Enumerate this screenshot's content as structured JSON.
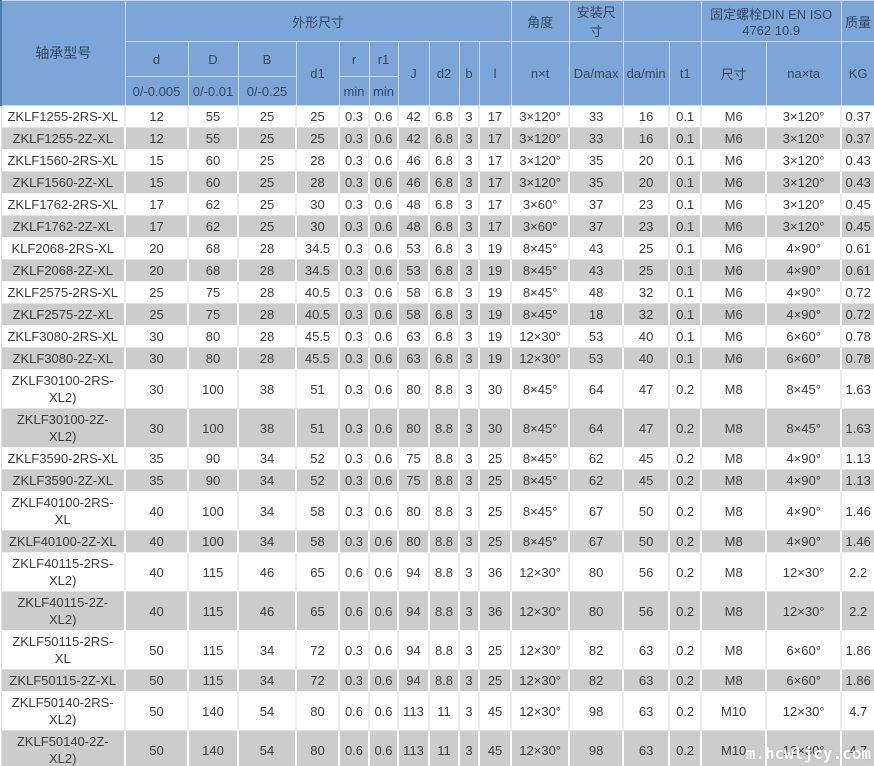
{
  "table": {
    "title_col": "轴承型号",
    "groups": {
      "dimensions": "外形尺寸",
      "angle": "角度",
      "mounting": "安装尺寸",
      "bolt": "固定螺栓DIN EN ISO 4762  10.9",
      "mass": "质量"
    },
    "columns": [
      "d",
      "D",
      "B",
      "d1",
      "r",
      "r1",
      "J",
      "d2",
      "b",
      "l",
      "n×t",
      "Da/max",
      "da/min",
      "t1",
      "尺寸",
      "na×ta",
      "KG"
    ],
    "tolerances": [
      "0/-0.005",
      "0/-0.01",
      "0/-0.25",
      "min",
      "min"
    ],
    "rows": [
      [
        "ZKLF1255-2RS-XL",
        "12",
        "55",
        "25",
        "25",
        "0.3",
        "0.6",
        "42",
        "6.8",
        "3",
        "17",
        "3×120°",
        "33",
        "16",
        "0.1",
        "M6",
        "3×120°",
        "0.37"
      ],
      [
        "ZKLF1255-2Z-XL",
        "12",
        "55",
        "25",
        "25",
        "0.3",
        "0.6",
        "42",
        "6.8",
        "3",
        "17",
        "3×120°",
        "33",
        "16",
        "0.1",
        "M6",
        "3×120°",
        "0.37"
      ],
      [
        "ZKLF1560-2RS-XL",
        "15",
        "60",
        "25",
        "28",
        "0.3",
        "0.6",
        "46",
        "6.8",
        "3",
        "17",
        "3×120°",
        "35",
        "20",
        "0.1",
        "M6",
        "3×120°",
        "0.43"
      ],
      [
        "ZKLF1560-2Z-XL",
        "15",
        "60",
        "25",
        "28",
        "0.3",
        "0.6",
        "46",
        "6.8",
        "3",
        "17",
        "3×120°",
        "35",
        "20",
        "0.1",
        "M6",
        "3×120°",
        "0.43"
      ],
      [
        "ZKLF1762-2RS-XL",
        "17",
        "62",
        "25",
        "30",
        "0.3",
        "0.6",
        "48",
        "6.8",
        "3",
        "17",
        "3×60°",
        "37",
        "23",
        "0.1",
        "M6",
        "3×120°",
        "0.45"
      ],
      [
        "ZKLF1762-2Z-XL",
        "17",
        "62",
        "25",
        "30",
        "0.3",
        "0.6",
        "48",
        "6.8",
        "3",
        "17",
        "3×60°",
        "37",
        "23",
        "0.1",
        "M6",
        "3×120°",
        "0.45"
      ],
      [
        "KLF2068-2RS-XL",
        "20",
        "68",
        "28",
        "34.5",
        "0.3",
        "0.6",
        "53",
        "6.8",
        "3",
        "19",
        "8×45°",
        "43",
        "25",
        "0.1",
        "M6",
        "4×90°",
        "0.61"
      ],
      [
        "ZKLF2068-2Z-XL",
        "20",
        "68",
        "28",
        "34.5",
        "0.3",
        "0.6",
        "53",
        "6.8",
        "3",
        "19",
        "8×45°",
        "43",
        "25",
        "0.1",
        "M6",
        "4×90°",
        "0.61"
      ],
      [
        "ZKLF2575-2RS-XL",
        "25",
        "75",
        "28",
        "40.5",
        "0.3",
        "0.6",
        "58",
        "6.8",
        "3",
        "19",
        "8×45°",
        "48",
        "32",
        "0.1",
        "M6",
        "4×90°",
        "0.72"
      ],
      [
        "ZKLF2575-2Z-XL",
        "25",
        "75",
        "28",
        "40.5",
        "0.3",
        "0.6",
        "58",
        "6.8",
        "3",
        "19",
        "8×45°",
        "18",
        "32",
        "0.1",
        "M6",
        "4×90°",
        "0.72"
      ],
      [
        "ZKLF3080-2RS-XL",
        "30",
        "80",
        "28",
        "45.5",
        "0.3",
        "0.6",
        "63",
        "6.8",
        "3",
        "19",
        "12×30°",
        "53",
        "40",
        "0.1",
        "M6",
        "6×60°",
        "0.78"
      ],
      [
        "ZKLF3080-2Z-XL",
        "30",
        "80",
        "28",
        "45.5",
        "0.3",
        "0.6",
        "63",
        "6.8",
        "3",
        "19",
        "12×30°",
        "53",
        "40",
        "0.1",
        "M6",
        "6×60°",
        "0.78"
      ],
      [
        "ZKLF30100-2RS-XL2)",
        "30",
        "100",
        "38",
        "51",
        "0.3",
        "0.6",
        "80",
        "8.8",
        "3",
        "30",
        "8×45°",
        "64",
        "47",
        "0.2",
        "M8",
        "8×45°",
        "1.63"
      ],
      [
        "ZKLF30100-2Z-XL2)",
        "30",
        "100",
        "38",
        "51",
        "0.3",
        "0.6",
        "80",
        "8.8",
        "3",
        "30",
        "8×45°",
        "64",
        "47",
        "0.2",
        "M8",
        "8×45°",
        "1.63"
      ],
      [
        "ZKLF3590-2RS-XL",
        "35",
        "90",
        "34",
        "52",
        "0.3",
        "0.6",
        "75",
        "8.8",
        "3",
        "25",
        "8×45°",
        "62",
        "45",
        "0.2",
        "M8",
        "4×90°",
        "1.13"
      ],
      [
        "ZKLF3590-2Z-XL",
        "35",
        "90",
        "34",
        "52",
        "0.3",
        "0.6",
        "75",
        "8.8",
        "3",
        "25",
        "8×45°",
        "62",
        "45",
        "0.2",
        "M8",
        "4×90°",
        "1.13"
      ],
      [
        "ZKLF40100-2RS-XL",
        "40",
        "100",
        "34",
        "58",
        "0.3",
        "0.6",
        "80",
        "8.8",
        "3",
        "25",
        "8×45°",
        "67",
        "50",
        "0.2",
        "M8",
        "4×90°",
        "1.46"
      ],
      [
        "ZKLF40100-2Z-XL",
        "40",
        "100",
        "34",
        "58",
        "0.3",
        "0.6",
        "80",
        "8.8",
        "3",
        "25",
        "8×45°",
        "67",
        "50",
        "0.2",
        "M8",
        "4×90°",
        "1.46"
      ],
      [
        "ZKLF40115-2RS-XL2)",
        "40",
        "115",
        "46",
        "65",
        "0.6",
        "0.6",
        "94",
        "8.8",
        "3",
        "36",
        "12×30°",
        "80",
        "56",
        "0.2",
        "M8",
        "12×30°",
        "2.2"
      ],
      [
        "ZKLF40115-2Z-XL2)",
        "40",
        "115",
        "46",
        "65",
        "0.6",
        "0.6",
        "94",
        "8.8",
        "3",
        "36",
        "12×30°",
        "80",
        "56",
        "0.2",
        "M8",
        "12×30°",
        "2.2"
      ],
      [
        "ZKLF50115-2RS-XL",
        "50",
        "115",
        "34",
        "72",
        "0.3",
        "0.6",
        "94",
        "8.8",
        "3",
        "25",
        "12×30°",
        "82",
        "63",
        "0.2",
        "M8",
        "6×60°",
        "1.86"
      ],
      [
        "ZKLF50115-2Z-XL",
        "50",
        "115",
        "34",
        "72",
        "0.3",
        "0.6",
        "94",
        "8.8",
        "3",
        "25",
        "12×30°",
        "82",
        "63",
        "0.2",
        "M8",
        "6×60°",
        "1.86"
      ],
      [
        "ZKLF50140-2RS-XL2)",
        "50",
        "140",
        "54",
        "80",
        "0.6",
        "0.6",
        "113",
        "11",
        "3",
        "45",
        "12×30°",
        "98",
        "63",
        "0.2",
        "M10",
        "12×30°",
        "4.7"
      ],
      [
        "ZKLF50140-2Z-XL2)",
        "50",
        "140",
        "54",
        "80",
        "0.6",
        "0.6",
        "113",
        "11",
        "3",
        "45",
        "12×30°",
        "98",
        "63",
        "0.2",
        "M10",
        "12×30°",
        "4.7"
      ]
    ]
  },
  "watermark": "m.hcwljcy.com",
  "colors": {
    "header_bg": "#7ca6d8",
    "header_text": "#34495e",
    "header_border": "#c9dcf0",
    "header_edge": "#4c7cb2",
    "row_alt_bg": "#cccccc",
    "row_bg": "#ffffff",
    "body_text": "#3d3d3d",
    "body_border": "#e2e2e2",
    "watermark_text": "#ffffff"
  }
}
